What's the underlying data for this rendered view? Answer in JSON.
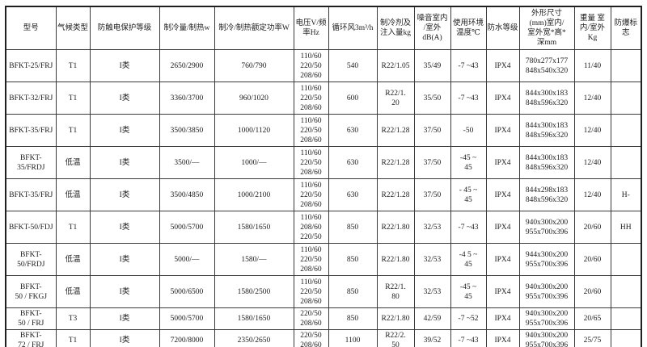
{
  "table": {
    "headers": [
      "型号",
      "气候类型",
      "防触电保护等级",
      "制冷量/制热w",
      "制冷/制热额定功率W",
      "电压V/频\n率Hz",
      "循环风3m³/h",
      "制冷剂及\n注入量kg",
      "噪音室内\n/室外\ndB(A)",
      "使用环境\n温度℃",
      "防水等级",
      "外形尺寸\n(mm)室内/\n室外宽*高*\n深mm",
      "重量 室\n内/室外\nKg",
      "防爆标志"
    ],
    "rows": [
      {
        "cells": [
          "BFKT-25/FRJ",
          "T1",
          "I类",
          "2650/2900",
          "760/790",
          "110/60\n220/50\n208/60",
          "540",
          "R22/1.05",
          "35/49",
          "-7 ~43",
          "IPX4",
          "780x277x177\n848x540x320",
          "11/40",
          ""
        ]
      },
      {
        "cells": [
          "BFKT-32/FRJ",
          "T1",
          "I类",
          "3360/3700",
          "960/1020",
          "110/60\n220/50\n208/60",
          "600",
          "R22/1.\n20",
          "35/50",
          "-7 ~43",
          "IPX4",
          "844x300x183\n848x596x320",
          "12/40",
          ""
        ]
      },
      {
        "cells": [
          "BFKT-35/FRJ",
          "T1",
          "I类",
          "3500/3850",
          "1000/1120",
          "110/60\n220/50\n208/60",
          "630",
          "R22/1.28",
          "37/50",
          "-50",
          "IPX4",
          "844x300x183\n848x596x320",
          "12/40",
          ""
        ]
      },
      {
        "cells": [
          "BFKT-\n35/FRDJ",
          "低温",
          "I类",
          "3500/—",
          "1000/—",
          "110/60\n220/50\n208/60",
          "630",
          "R22/1.28",
          "37/50",
          "-45 ~\n45",
          "IPX4",
          "844x300x183\n848x596x320",
          "12/40",
          ""
        ]
      },
      {
        "cells": [
          "BFKT-35/FRJ",
          "低温",
          "I类",
          "3500/4850",
          "1000/2100",
          "110/60\n220/50\n208/60",
          "630",
          "R22/1.28",
          "37/50",
          "- 45 ~\n45",
          "IPX4",
          "844x298x183\n848x596x320",
          "12/40",
          "H-"
        ]
      },
      {
        "cells": [
          "BFKT-50/FDJ",
          "T1",
          "I类",
          "5000/5700",
          "1580/1650",
          "110/60\n208/60\n220/50",
          "850",
          "R22/1.80",
          "32/53",
          "-7 ~43",
          "IPX4",
          "940x300x200\n955x700x396",
          "20/60",
          "HH"
        ]
      },
      {
        "cells": [
          "BFKT-\n50/FRDJ",
          "低温",
          "I类",
          "5000/—",
          "1580/—",
          "110/60\n220/50\n208/60",
          "850",
          "R22/1.80",
          "32/53",
          "-4 5 ~\n45",
          "IPX4",
          "944x300x200\n955x700x396",
          "20/60",
          ""
        ]
      },
      {
        "cells": [
          "BFKT-\n50 / FKGJ",
          "低温",
          "I类",
          "5000/6500",
          "1580/2500",
          "110/60\n220/50\n208/60",
          "850",
          "R22/1.\n80",
          "32/53",
          "-45 ~\n45",
          "IPX4",
          "940x300x200\n955x700x396",
          "20/60",
          ""
        ]
      },
      {
        "cells": [
          "BFKT-\n50 / FRJ",
          "T3",
          "I类",
          "5000/5700",
          "1580/1650",
          "220/50\n208/60",
          "850",
          "R22/1.80",
          "42/59",
          "-7 ~52",
          "IPX4",
          "940x300x200\n955x700x396",
          "20/65",
          ""
        ],
        "short": true
      },
      {
        "cells": [
          "BFKT-\n72 / FRJ",
          "T1",
          "I类",
          "7200/8000",
          "2350/2650",
          "220/50\n208/60",
          "1100",
          "R22/2.\n50",
          "39/52",
          "-7 ~43",
          "IPX4",
          "940x300x200\n955x700x396",
          "25/75",
          ""
        ],
        "short": true
      }
    ]
  }
}
